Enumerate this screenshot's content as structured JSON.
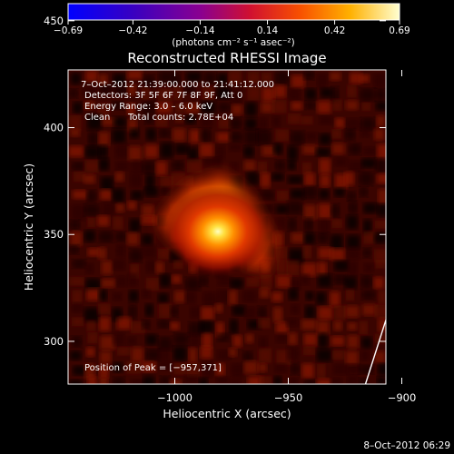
{
  "chart_data": {
    "type": "heatmap",
    "title": "Reconstructed RHESSI Image",
    "xlabel": "Heliocentric X (arcsec)",
    "ylabel": "Heliocentric Y (arcsec)",
    "xlim": [
      -1047,
      -907
    ],
    "ylim": [
      280,
      427
    ],
    "xticks": [
      -1000,
      -950,
      -900
    ],
    "xtick_labels": [
      "−1000",
      "−950",
      "−900"
    ],
    "yticks": [
      300,
      350,
      400,
      450
    ],
    "ytick_labels": [
      "300",
      "350",
      "400",
      "450"
    ],
    "colorbar": {
      "min": -0.69,
      "max": 0.69,
      "ticks": [
        -0.69,
        -0.42,
        -0.14,
        0.14,
        0.42,
        0.69
      ],
      "tick_labels": [
        "−0.69",
        "−0.42",
        "−0.14",
        "0.14",
        "0.42",
        "0.69"
      ],
      "unit_text": "(photons cm⁻² s⁻¹ asec⁻²)"
    },
    "annotations": {
      "time_range": "7–Oct–2012 21:39:00.000 to 21:41:12.000",
      "detectors": "Detectors: 3F 5F 6F 7F 8F 9F, Att 0",
      "energy": "Energy Range: 3.0 – 6.0 keV",
      "clean": "Clean",
      "counts": "Total counts: 2.78E+04",
      "peak": "Position of Peak = [−957,371]"
    },
    "peak": {
      "x": -957,
      "y": 371
    },
    "limb": [
      [
        -916,
        280
      ],
      [
        -904,
        320
      ],
      [
        -888,
        372
      ],
      [
        -870,
        405
      ],
      [
        -861,
        427
      ]
    ],
    "timestamp": "8–Oct–2012 06:29"
  }
}
